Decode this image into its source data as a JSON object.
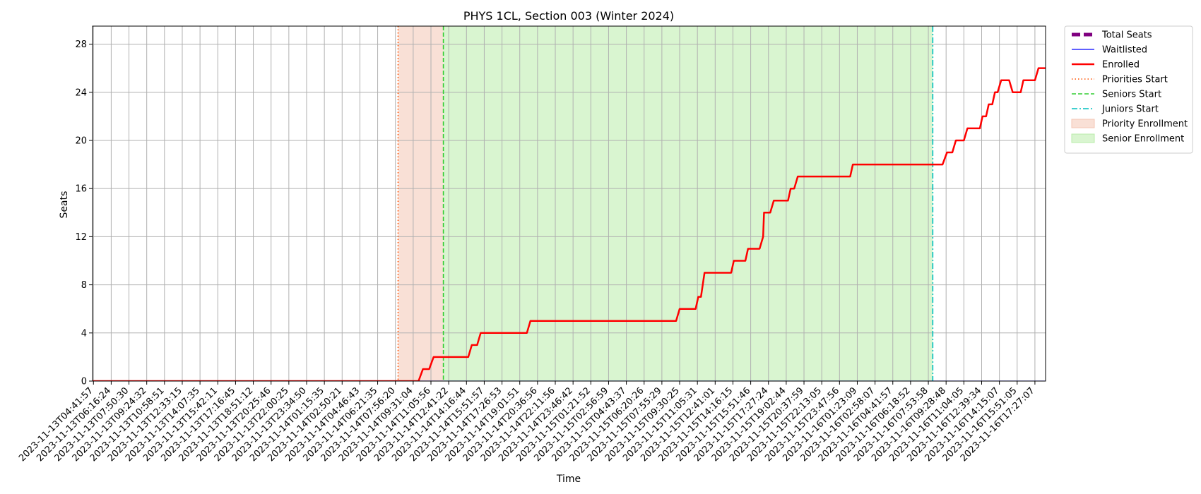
{
  "chart_data": {
    "type": "line",
    "title": "PHYS 1CL, Section 003 (Winter 2024)",
    "xlabel": "Time",
    "ylabel": "Seats",
    "ylim": [
      0,
      29.5
    ],
    "yticks": [
      0,
      4,
      8,
      12,
      16,
      20,
      24,
      28
    ],
    "grid": true,
    "legend_position": "outside-top-right",
    "x_categories": [
      "2023-11-13T04:41:57",
      "2023-11-13T06:16:24",
      "2023-11-13T07:50:30",
      "2023-11-13T09:24:32",
      "2023-11-13T10:58:51",
      "2023-11-13T12:33:15",
      "2023-11-13T14:07:35",
      "2023-11-13T15:42:11",
      "2023-11-13T17:16:45",
      "2023-11-13T18:51:12",
      "2023-11-13T20:25:46",
      "2023-11-13T22:00:25",
      "2023-11-13T23:34:50",
      "2023-11-14T01:15:35",
      "2023-11-14T02:50:21",
      "2023-11-14T04:46:43",
      "2023-11-14T06:21:35",
      "2023-11-14T07:56:20",
      "2023-11-14T09:31:04",
      "2023-11-14T11:05:56",
      "2023-11-14T12:41:22",
      "2023-11-14T14:16:44",
      "2023-11-14T15:51:57",
      "2023-11-14T17:26:53",
      "2023-11-14T19:01:51",
      "2023-11-14T20:36:56",
      "2023-11-14T22:11:56",
      "2023-11-14T23:46:42",
      "2023-11-15T01:21:52",
      "2023-11-15T02:56:59",
      "2023-11-15T04:43:37",
      "2023-11-15T06:20:26",
      "2023-11-15T07:55:29",
      "2023-11-15T09:30:25",
      "2023-11-15T11:05:31",
      "2023-11-15T12:41:01",
      "2023-11-15T14:16:15",
      "2023-11-15T15:51:46",
      "2023-11-15T17:27:24",
      "2023-11-15T19:02:44",
      "2023-11-15T20:37:59",
      "2023-11-15T22:13:05",
      "2023-11-15T23:47:56",
      "2023-11-16T01:23:09",
      "2023-11-16T02:58:07",
      "2023-11-16T04:41:57",
      "2023-11-16T06:18:52",
      "2023-11-16T07:53:58",
      "2023-11-16T09:28:48",
      "2023-11-16T11:04:05",
      "2023-11-16T12:39:34",
      "2023-11-16T14:15:07",
      "2023-11-16T15:51:05",
      "2023-11-16T17:27:07"
    ],
    "x_range_ticks": [
      -0.05,
      53.6
    ],
    "series": [
      {
        "name": "Total Seats",
        "color": "#800080",
        "style": "dashed-thick",
        "points": [
          [
            -0.05,
            30
          ],
          [
            53.6,
            30
          ]
        ]
      },
      {
        "name": "Waitlisted",
        "color": "#0000ff",
        "style": "solid-thin",
        "points": [
          [
            -0.05,
            0
          ],
          [
            53.6,
            0
          ]
        ]
      },
      {
        "name": "Enrolled",
        "color": "#ff0000",
        "style": "solid",
        "points": [
          [
            -0.05,
            0
          ],
          [
            18.3,
            0
          ],
          [
            18.55,
            1
          ],
          [
            18.9,
            1
          ],
          [
            19.15,
            2
          ],
          [
            21.1,
            2
          ],
          [
            21.3,
            3
          ],
          [
            21.6,
            3
          ],
          [
            21.8,
            4
          ],
          [
            24.4,
            4
          ],
          [
            24.6,
            5
          ],
          [
            32.8,
            5
          ],
          [
            33.0,
            6
          ],
          [
            33.9,
            6
          ],
          [
            34.05,
            7
          ],
          [
            34.2,
            7
          ],
          [
            34.4,
            9
          ],
          [
            35.9,
            9
          ],
          [
            36.05,
            10
          ],
          [
            36.7,
            10
          ],
          [
            36.85,
            11
          ],
          [
            37.5,
            11
          ],
          [
            37.7,
            12
          ],
          [
            37.75,
            14
          ],
          [
            38.1,
            14
          ],
          [
            38.3,
            15
          ],
          [
            39.1,
            15
          ],
          [
            39.25,
            16
          ],
          [
            39.45,
            16
          ],
          [
            39.65,
            17
          ],
          [
            42.6,
            17
          ],
          [
            42.75,
            18
          ],
          [
            47.8,
            18
          ],
          [
            48.05,
            19
          ],
          [
            48.35,
            19
          ],
          [
            48.55,
            20
          ],
          [
            49.0,
            20
          ],
          [
            49.2,
            21
          ],
          [
            49.9,
            21
          ],
          [
            50.05,
            22
          ],
          [
            50.25,
            22
          ],
          [
            50.4,
            23
          ],
          [
            50.6,
            23
          ],
          [
            50.75,
            24
          ],
          [
            50.9,
            24
          ],
          [
            51.1,
            25
          ],
          [
            51.55,
            25
          ],
          [
            51.75,
            24
          ],
          [
            52.2,
            24
          ],
          [
            52.35,
            25
          ],
          [
            53.0,
            25
          ],
          [
            53.2,
            26
          ],
          [
            53.6,
            26
          ]
        ]
      }
    ],
    "vertical_lines": [
      {
        "name": "Priorities Start",
        "x": 17.15,
        "color": "#ff5000",
        "style": "dotted"
      },
      {
        "name": "Seniors Start",
        "x": 19.7,
        "color": "#32cd32",
        "style": "dashed"
      },
      {
        "name": "Juniors Start",
        "x": 47.25,
        "color": "#00bfbf",
        "style": "dashdot"
      }
    ],
    "shaded_regions": [
      {
        "name": "Priority Enrollment",
        "x0": 17.15,
        "x1": 19.7,
        "color": "#f4c6b4"
      },
      {
        "name": "Senior Enrollment",
        "x0": 19.7,
        "x1": 47.25,
        "color": "#b9ecaa"
      }
    ]
  }
}
